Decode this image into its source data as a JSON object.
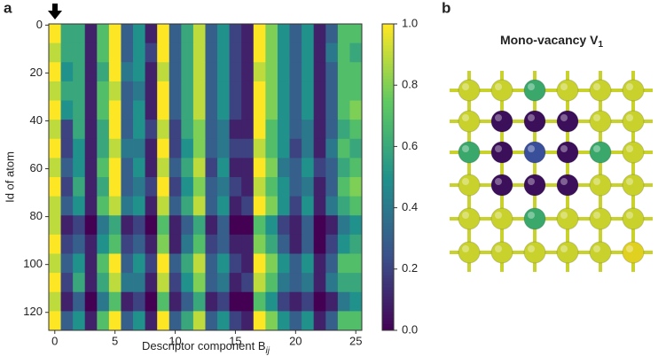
{
  "panel_a": "a",
  "panel_b": "b",
  "chart_data": {
    "type": "heatmap",
    "xlabel": "Descriptor component B",
    "xlabel_subscript": "ij",
    "ylabel": "Id of atom",
    "xbins": [
      -0.5,
      0.5,
      1.5,
      2.5,
      3.5,
      4.5,
      5.5,
      6.5,
      7.5,
      8.5,
      9.5,
      10.5,
      11.5,
      12.5,
      13.5,
      14.5,
      15.5,
      16.5,
      17.5,
      18.5,
      19.5,
      20.5,
      21.5,
      22.5,
      23.5,
      24.5,
      25.5
    ],
    "ybins": [
      -0.5,
      7.5,
      15.5,
      23.5,
      31.5,
      39.5,
      47.5,
      55.5,
      63.5,
      71.5,
      79.5,
      87.5,
      95.5,
      103.5,
      111.5,
      119.5,
      127.5
    ],
    "xlim": [
      -0.5,
      25.5
    ],
    "ylim": [
      127.5,
      -0.5
    ],
    "xticks": [
      0,
      5,
      10,
      15,
      20,
      25
    ],
    "yticks": [
      0,
      20,
      40,
      60,
      80,
      100,
      120
    ],
    "colormap": "viridis",
    "clim": [
      0,
      1
    ],
    "cticks": [
      {
        "value": 0,
        "label": "0.0"
      },
      {
        "value": 0.2,
        "label": "0.2"
      },
      {
        "value": 0.4,
        "label": "0.4"
      },
      {
        "value": 0.6,
        "label": "0.6"
      },
      {
        "value": 0.8,
        "label": "0.8"
      },
      {
        "value": 1,
        "label": "1.0"
      }
    ],
    "z": [
      [
        1.0,
        0.6,
        0.6,
        0.1,
        0.7,
        1.0,
        0.3,
        0.5,
        0.1,
        1.0,
        0.3,
        0.6,
        0.9,
        0.3,
        0.5,
        0.2,
        0.1,
        1.0,
        0.8,
        0.5,
        0.3,
        0.5,
        0.1,
        0.3,
        0.7,
        0.7
      ],
      [
        0.9,
        0.6,
        0.6,
        0.1,
        0.7,
        1.0,
        0.3,
        0.5,
        0.2,
        1.0,
        0.3,
        0.6,
        0.9,
        0.3,
        0.5,
        0.2,
        0.1,
        1.0,
        0.8,
        0.5,
        0.3,
        0.5,
        0.1,
        0.4,
        0.7,
        0.6
      ],
      [
        1.0,
        0.5,
        0.6,
        0.1,
        0.6,
        1.0,
        0.4,
        0.5,
        0.1,
        0.9,
        0.3,
        0.6,
        0.9,
        0.3,
        0.5,
        0.2,
        0.1,
        0.9,
        0.8,
        0.5,
        0.3,
        0.5,
        0.1,
        0.3,
        0.7,
        0.7
      ],
      [
        0.9,
        0.6,
        0.6,
        0.1,
        0.7,
        0.9,
        0.3,
        0.4,
        0.1,
        1.0,
        0.3,
        0.6,
        0.9,
        0.3,
        0.5,
        0.2,
        0.1,
        1.0,
        0.8,
        0.5,
        0.3,
        0.5,
        0.1,
        0.3,
        0.7,
        0.7
      ],
      [
        1.0,
        0.5,
        0.6,
        0.1,
        0.7,
        1.0,
        0.3,
        0.5,
        0.1,
        1.0,
        0.3,
        0.6,
        0.9,
        0.3,
        0.5,
        0.2,
        0.1,
        1.0,
        0.8,
        0.5,
        0.3,
        0.5,
        0.1,
        0.3,
        0.7,
        0.8
      ],
      [
        0.9,
        0.2,
        0.6,
        0.1,
        0.6,
        1.0,
        0.3,
        0.5,
        0.2,
        0.9,
        0.2,
        0.6,
        0.8,
        0.3,
        0.4,
        0.1,
        0.1,
        1.0,
        0.7,
        0.5,
        0.3,
        0.4,
        0.1,
        0.3,
        0.6,
        0.7
      ],
      [
        1.0,
        0.2,
        0.5,
        0.1,
        0.6,
        0.9,
        0.4,
        0.4,
        0.1,
        1.0,
        0.2,
        0.5,
        0.8,
        0.3,
        0.4,
        0.2,
        0.2,
        0.9,
        0.7,
        0.5,
        0.2,
        0.4,
        0.1,
        0.4,
        0.7,
        0.6
      ],
      [
        0.9,
        0.3,
        0.5,
        0.1,
        0.7,
        1.0,
        0.3,
        0.5,
        0.1,
        0.9,
        0.3,
        0.6,
        0.9,
        0.2,
        0.5,
        0.1,
        0.1,
        1.0,
        0.8,
        0.4,
        0.3,
        0.5,
        0.2,
        0.3,
        0.6,
        0.7
      ],
      [
        1.0,
        0.2,
        0.6,
        0.1,
        0.6,
        1.0,
        0.3,
        0.4,
        0.2,
        1.0,
        0.2,
        0.5,
        0.8,
        0.3,
        0.4,
        0.2,
        0.1,
        0.9,
        0.7,
        0.5,
        0.3,
        0.4,
        0.1,
        0.3,
        0.7,
        0.8
      ],
      [
        0.9,
        0.3,
        0.5,
        0.1,
        0.7,
        0.9,
        0.4,
        0.5,
        0.1,
        0.9,
        0.3,
        0.6,
        0.9,
        0.3,
        0.5,
        0.1,
        0.2,
        1.0,
        0.8,
        0.5,
        0.2,
        0.5,
        0.1,
        0.4,
        0.6,
        0.7
      ],
      [
        0.9,
        0.1,
        0.2,
        0.0,
        0.4,
        0.6,
        0.1,
        0.2,
        0.0,
        0.7,
        0.1,
        0.3,
        0.6,
        0.1,
        0.3,
        0.0,
        0.0,
        0.7,
        0.5,
        0.2,
        0.1,
        0.3,
        0.0,
        0.1,
        0.4,
        0.5
      ],
      [
        1.0,
        0.2,
        0.3,
        0.1,
        0.5,
        0.7,
        0.2,
        0.3,
        0.1,
        0.8,
        0.1,
        0.4,
        0.7,
        0.2,
        0.3,
        0.1,
        0.1,
        0.8,
        0.6,
        0.3,
        0.1,
        0.3,
        0.0,
        0.2,
        0.5,
        0.6
      ],
      [
        0.9,
        0.3,
        0.5,
        0.1,
        0.7,
        1.0,
        0.3,
        0.5,
        0.2,
        1.0,
        0.3,
        0.6,
        0.9,
        0.3,
        0.5,
        0.2,
        0.1,
        1.0,
        0.8,
        0.5,
        0.3,
        0.5,
        0.1,
        0.3,
        0.7,
        0.7
      ],
      [
        1.0,
        0.2,
        0.6,
        0.1,
        0.6,
        0.9,
        0.4,
        0.4,
        0.1,
        0.9,
        0.2,
        0.5,
        0.8,
        0.3,
        0.4,
        0.1,
        0.2,
        0.9,
        0.7,
        0.4,
        0.3,
        0.4,
        0.1,
        0.4,
        0.6,
        0.6
      ],
      [
        0.9,
        0.1,
        0.3,
        0.0,
        0.4,
        0.7,
        0.1,
        0.2,
        0.0,
        0.7,
        0.1,
        0.3,
        0.6,
        0.1,
        0.2,
        0.0,
        0.0,
        0.7,
        0.5,
        0.2,
        0.1,
        0.2,
        0.0,
        0.1,
        0.4,
        0.5
      ],
      [
        1.0,
        0.3,
        0.5,
        0.1,
        0.7,
        1.0,
        0.3,
        0.5,
        0.1,
        1.0,
        0.3,
        0.6,
        0.9,
        0.3,
        0.5,
        0.2,
        0.1,
        1.0,
        0.8,
        0.5,
        0.3,
        0.5,
        0.1,
        0.3,
        0.7,
        0.7
      ]
    ]
  },
  "diagram": {
    "title": "Mono-vacancy V",
    "title_subscript": "1"
  }
}
